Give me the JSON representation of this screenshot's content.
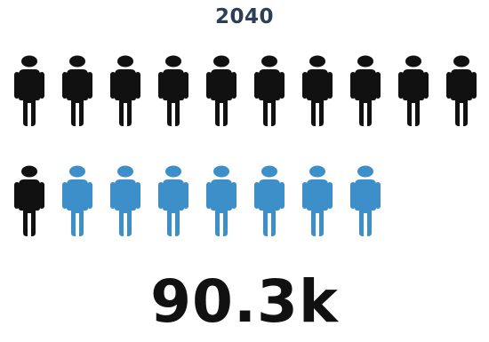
{
  "header": {
    "year": "2040"
  },
  "pictogram": {
    "total_icons": 18,
    "highlighted_icons": 7,
    "base_color": "#111111",
    "highlight_color": "#3d8fc9",
    "icon": "person-icon"
  },
  "summary": {
    "value": "90.3k"
  }
}
